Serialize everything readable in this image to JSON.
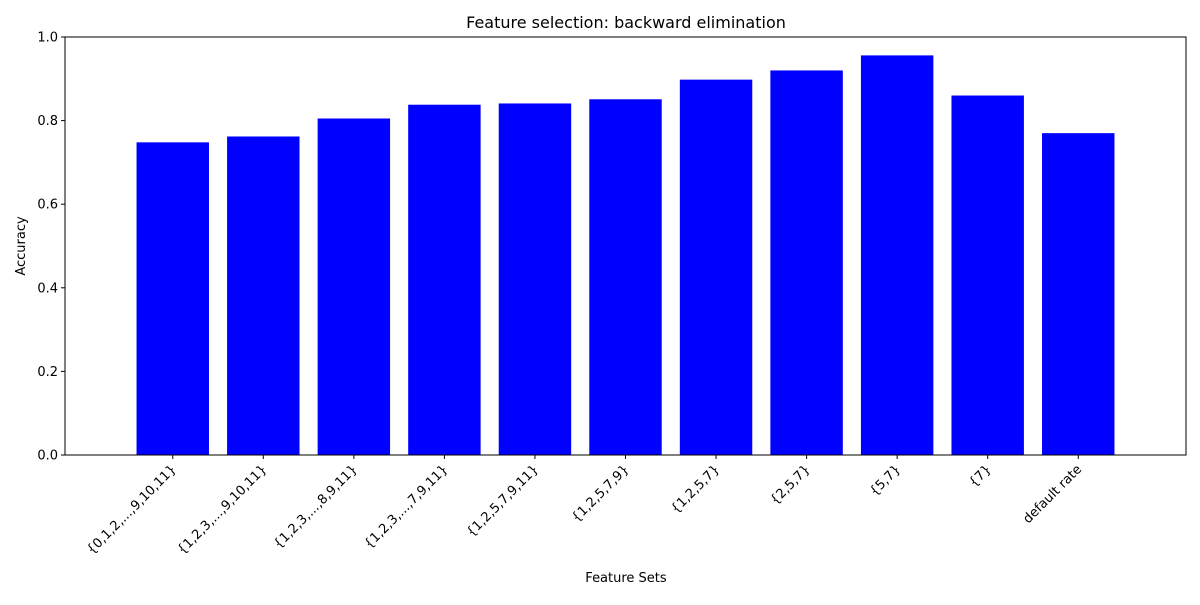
{
  "chart_data": {
    "type": "bar",
    "title": "Feature selection: backward elimination",
    "xlabel": "Feature Sets",
    "ylabel": "Accuracy",
    "categories": [
      "{0,1,2,...,9,10,11}",
      "{1,2,3,...,9,10,11}",
      "{1,2,3,...,8,9,11}",
      "{1,2,3,...,7,9,11}",
      "{1,2,5,7,9,11}",
      "{1,2,5,7,9}",
      "{1,2,5,7}",
      "{2,5,7}",
      "{5,7}",
      "{7}",
      "default rate"
    ],
    "values": [
      0.748,
      0.762,
      0.805,
      0.838,
      0.841,
      0.851,
      0.898,
      0.92,
      0.956,
      0.86,
      0.77
    ],
    "ylim": [
      0,
      1.0
    ],
    "yticks": [
      0.0,
      0.2,
      0.4,
      0.6,
      0.8,
      1.0
    ],
    "ytick_labels": [
      "0.0",
      "0.2",
      "0.4",
      "0.6",
      "0.8",
      "1.0"
    ],
    "bar_color": "#0000ff",
    "grid": false,
    "legend": "none"
  }
}
